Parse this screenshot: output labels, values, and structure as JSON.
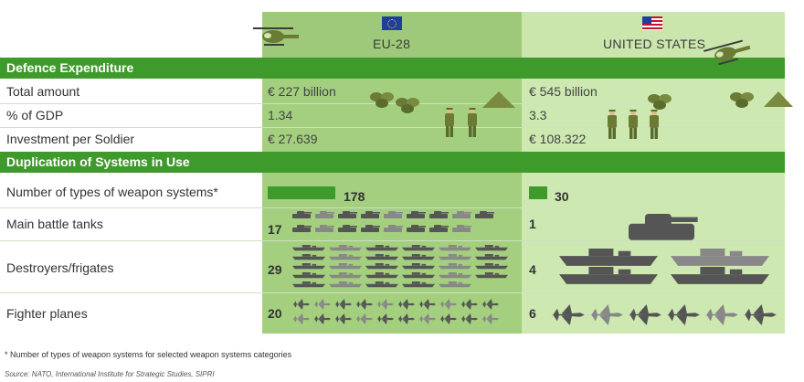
{
  "columns": {
    "eu": {
      "label": "EU-28"
    },
    "us": {
      "label": "UNITED STATES"
    }
  },
  "sections": {
    "expenditure": "Defence Expenditure",
    "duplication": "Duplication of Systems in Use"
  },
  "colors": {
    "section": "#3f9a2c",
    "eu_column": "#a3cf7e",
    "us_column": "#cde8b0",
    "bar": "#3f9a2c",
    "silhouette": "#666666"
  },
  "chart_data": {
    "type": "table",
    "expenditure_rows": [
      {
        "label": "Total amount",
        "eu": "€ 227 billion",
        "us": "€ 545 billion"
      },
      {
        "label": "% of GDP",
        "eu": "1.34",
        "us": "3.3"
      },
      {
        "label": "Investment per Soldier",
        "eu": "€ 27.639",
        "us": "€ 108.322"
      }
    ],
    "weapon_types": {
      "label": "Number of types of weapon systems*",
      "eu": 178,
      "us": 30
    },
    "systems_rows": [
      {
        "label": "Main battle tanks",
        "eu": 17,
        "us": 1
      },
      {
        "label": "Destroyers/frigates",
        "eu": 29,
        "us": 4
      },
      {
        "label": "Fighter planes",
        "eu": 20,
        "us": 6
      }
    ]
  },
  "icons": [
    "helicopter-icon",
    "soldier-icon",
    "money-bag-icon",
    "tent-icon",
    "tank-icon",
    "ship-icon",
    "jet-icon",
    "flag-eu-icon",
    "flag-us-icon"
  ],
  "footnote": "* Number of types of weapon systems for selected weapon systems categories",
  "source": "Source: NATO, International Institute for Strategic Studies, SIPRI"
}
